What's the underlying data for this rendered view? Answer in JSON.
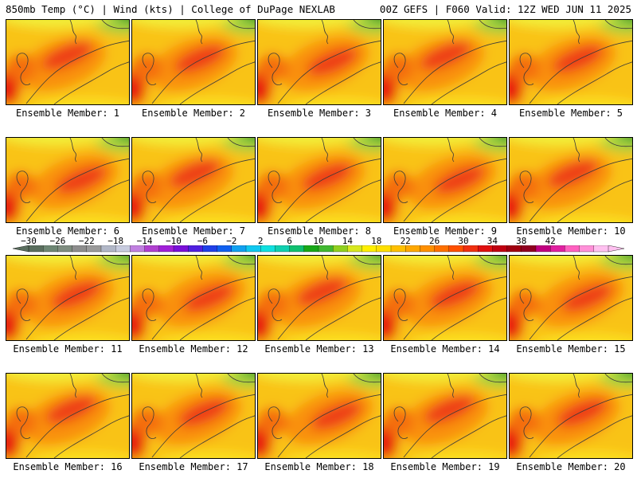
{
  "header": {
    "left_title": "850mb Temp (°C) | Wind (kts) | College of DuPage NEXLAB",
    "right_title": "00Z GEFS | F060 Valid: 12Z WED JUN 11 2025"
  },
  "panels": [
    {
      "label": "Ensemble Member: 1"
    },
    {
      "label": "Ensemble Member: 2"
    },
    {
      "label": "Ensemble Member: 3"
    },
    {
      "label": "Ensemble Member: 4"
    },
    {
      "label": "Ensemble Member: 5"
    },
    {
      "label": "Ensemble Member: 6"
    },
    {
      "label": "Ensemble Member: 7"
    },
    {
      "label": "Ensemble Member: 8"
    },
    {
      "label": "Ensemble Member: 9"
    },
    {
      "label": "Ensemble Member: 10"
    },
    {
      "label": "Ensemble Member: 11"
    },
    {
      "label": "Ensemble Member: 12"
    },
    {
      "label": "Ensemble Member: 13"
    },
    {
      "label": "Ensemble Member: 14"
    },
    {
      "label": "Ensemble Member: 15"
    },
    {
      "label": "Ensemble Member: 16"
    },
    {
      "label": "Ensemble Member: 17"
    },
    {
      "label": "Ensemble Member: 18"
    },
    {
      "label": "Ensemble Member: 19"
    },
    {
      "label": "Ensemble Member: 20"
    }
  ],
  "colorbar": {
    "tick_labels": [
      "−30",
      "−26",
      "−22",
      "−18",
      "−14",
      "−10",
      "−6",
      "−2",
      "2",
      "6",
      "10",
      "14",
      "18",
      "22",
      "26",
      "30",
      "34",
      "38",
      "42"
    ],
    "colors": [
      "#5a6e5e",
      "#6e8774",
      "#7f8d80",
      "#8e8e8e",
      "#9a9a9a",
      "#b1b7c7",
      "#c8ccdf",
      "#c080e0",
      "#b040d0",
      "#a020d8",
      "#7a10d8",
      "#5020e0",
      "#2040e8",
      "#1060f0",
      "#10a0f0",
      "#10c8f0",
      "#10e0e0",
      "#10d0b0",
      "#10c070",
      "#18a818",
      "#40b830",
      "#90d020",
      "#d8e820",
      "#fff000",
      "#ffe000",
      "#ffc000",
      "#ffa800",
      "#ff9000",
      "#ff7000",
      "#ff5000",
      "#f03010",
      "#e01010",
      "#c00010",
      "#a00010",
      "#900020",
      "#c00080",
      "#e020a0",
      "#ff60c0",
      "#ff90d8",
      "#ffc0f0"
    ]
  }
}
